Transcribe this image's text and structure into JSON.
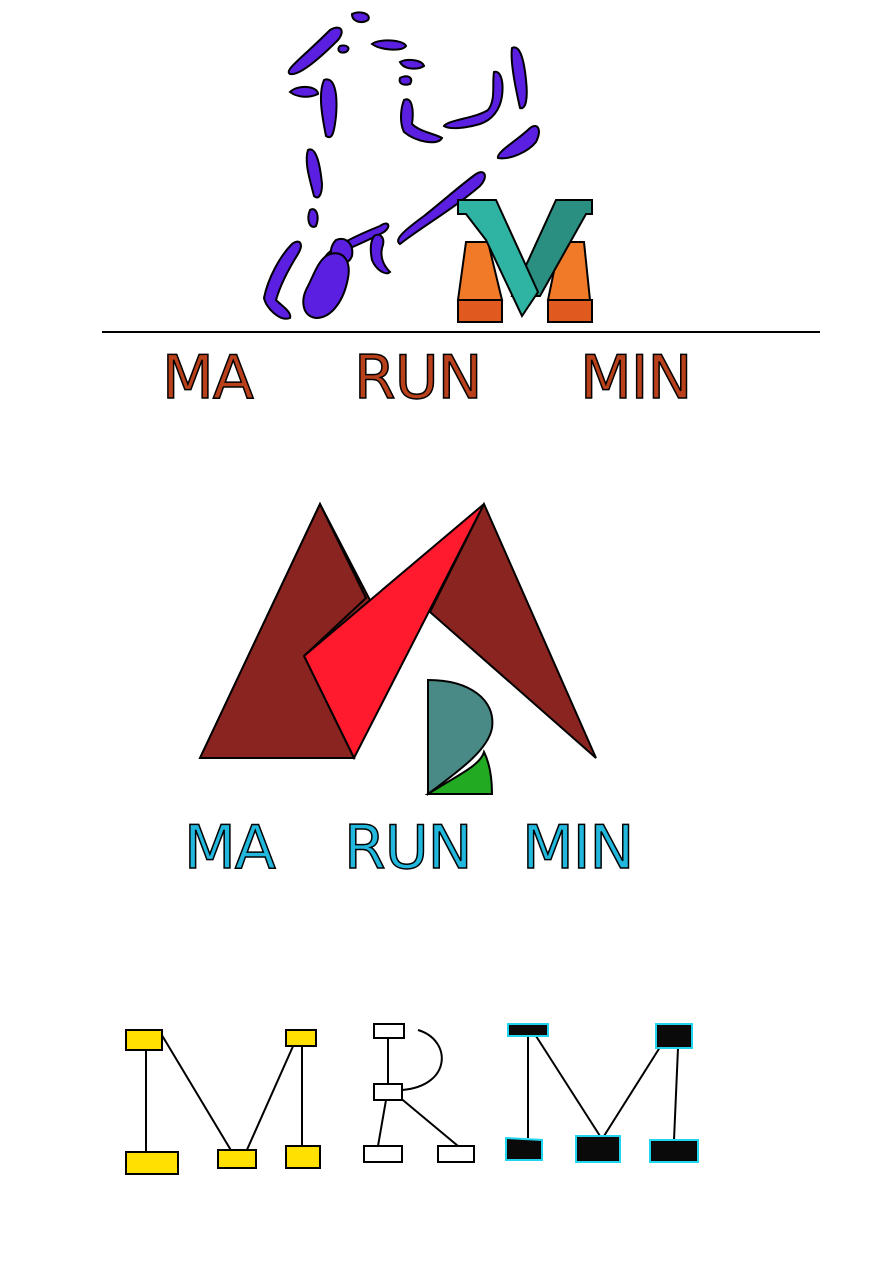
{
  "logo1": {
    "words": [
      "MA",
      "RUN",
      "MIN"
    ],
    "colors": {
      "runner": "#5a1fe0",
      "text": "#b8401a",
      "m_teal": "#2fb3a2",
      "m_teal_dark": "#2a8f80",
      "m_orange": "#f07a28",
      "m_orange_dark": "#e05a20"
    }
  },
  "logo2": {
    "words": [
      "MA",
      "RUN",
      "MIN"
    ],
    "colors": {
      "m_dark": "#8a2420",
      "m_red": "#ff1a2e",
      "r_teal": "#4a8a86",
      "r_green": "#22aa22",
      "text": "#22b8dd"
    }
  },
  "logo3": {
    "colors": {
      "yellow": "#ffe000",
      "white": "#ffffff",
      "black": "#0a0a0a",
      "cyan": "#22d4ee"
    }
  }
}
